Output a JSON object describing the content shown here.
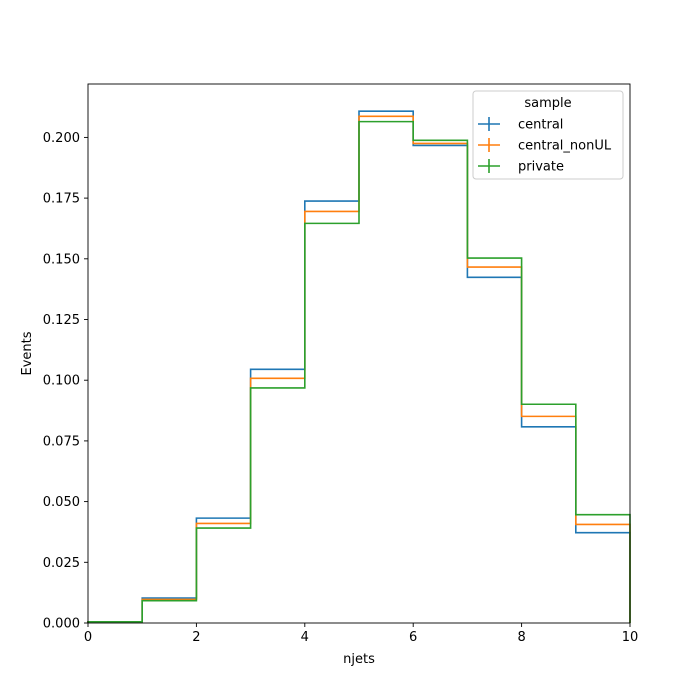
{
  "chart_data": {
    "type": "line",
    "drawstyle": "steps",
    "title": "",
    "xlabel": "njets",
    "ylabel": "Events",
    "xlim": [
      0,
      10
    ],
    "ylim": [
      0,
      0.222
    ],
    "grid": false,
    "bin_edges": [
      0,
      1,
      2,
      3,
      4,
      5,
      6,
      7,
      8,
      9,
      10
    ],
    "x_ticks": [
      0,
      2,
      4,
      6,
      8,
      10
    ],
    "x_tick_labels": [
      "0",
      "2",
      "4",
      "6",
      "8",
      "10"
    ],
    "y_ticks": [
      0,
      0.025,
      0.05,
      0.075,
      0.1,
      0.125,
      0.15,
      0.175,
      0.2
    ],
    "y_tick_labels": [
      "0.000",
      "0.025",
      "0.050",
      "0.075",
      "0.100",
      "0.125",
      "0.150",
      "0.175",
      "0.200"
    ],
    "legend": {
      "title": "sample",
      "placement": "upper right"
    },
    "series": [
      {
        "name": "central",
        "color": "#1f77b4",
        "values": [
          0.0005,
          0.0103,
          0.0432,
          0.1045,
          0.1738,
          0.2108,
          0.1967,
          0.1424,
          0.0808,
          0.0372
        ]
      },
      {
        "name": "central_nonUL",
        "color": "#ff7f0e",
        "values": [
          0.0005,
          0.0097,
          0.041,
          0.1008,
          0.1695,
          0.2087,
          0.1975,
          0.1466,
          0.0851,
          0.0406
        ]
      },
      {
        "name": "private",
        "color": "#2ca02c",
        "values": [
          0.0005,
          0.0092,
          0.0391,
          0.0968,
          0.1646,
          0.2065,
          0.1988,
          0.1503,
          0.0901,
          0.0446
        ]
      }
    ]
  }
}
